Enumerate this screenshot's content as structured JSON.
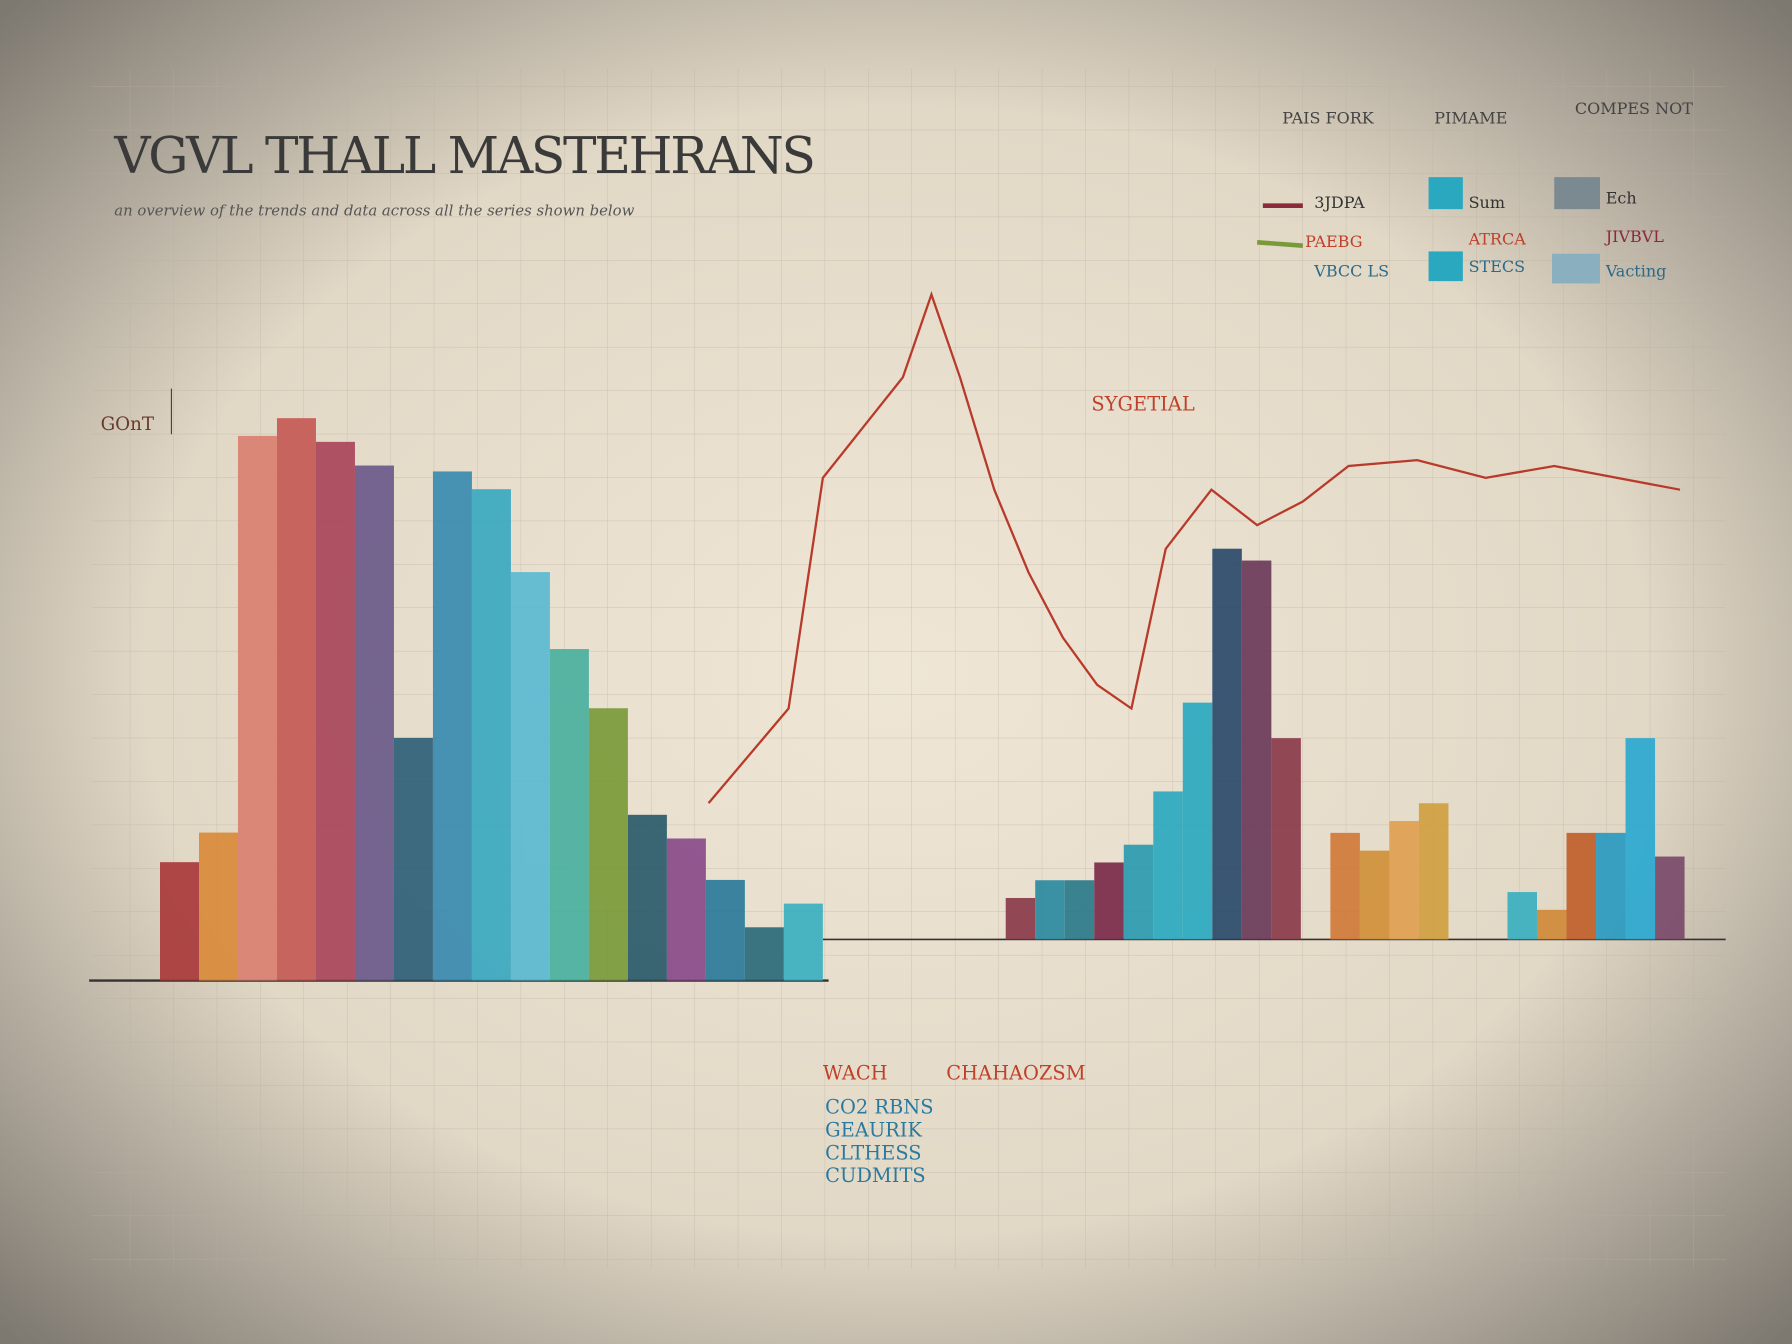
{
  "chart_data": [
    {
      "type": "bar",
      "title": "VGVL THALL MASTEHRANS",
      "subtitle": "an overview of the trends and data across all the series shown below",
      "ylabel": "GOnT",
      "categories": [
        null,
        null,
        null,
        null,
        null,
        null,
        null,
        null,
        null,
        null,
        null,
        null,
        null,
        null,
        null,
        null,
        null
      ],
      "values": [
        20,
        25,
        92,
        95,
        91,
        87,
        41,
        86,
        83,
        69,
        56,
        46,
        28,
        24,
        17,
        9,
        13
      ],
      "colors": [
        "#a83a3a",
        "#d98a3a",
        "#d98070",
        "#c45a55",
        "#a8455a",
        "#6a5a8a",
        "#2f5f78",
        "#3a8ab0",
        "#3aa8c0",
        "#5ab8d0",
        "#4ab0a0",
        "#7a9a3a",
        "#2a5a6a",
        "#8a4a8a",
        "#2a7a9a",
        "#2a6a7a",
        "#3ab0c0"
      ],
      "ylim": [
        0,
        100
      ],
      "annotations": [
        "SYGETIAL",
        "CHAHAOZSM",
        "WACH",
        "CO2 RBNS",
        "GEAURIK",
        "CLTHESS",
        "CUDMITS"
      ]
    },
    {
      "type": "bar",
      "categories": [
        null,
        null,
        null,
        null,
        null,
        null,
        null,
        null,
        null,
        null,
        null,
        null,
        null,
        null,
        null,
        null,
        null,
        null,
        null,
        null,
        null,
        null,
        null
      ],
      "values": [
        7,
        10,
        10,
        13,
        16,
        25,
        40,
        66,
        64,
        34,
        null,
        18,
        15,
        20,
        23,
        null,
        null,
        8,
        5,
        18,
        18,
        34,
        14
      ],
      "colors": [
        "#8a3a4a",
        "#2a8aa0",
        "#2a7a8a",
        "#7a2a4a",
        "#2a9ab0",
        "#2aa8c0",
        "#2aa8c0",
        "#2a4a6a",
        "#6a3a5a",
        "#8a3a4a",
        null,
        "#d07a3a",
        "#d0903a",
        "#e0a050",
        "#d0a040",
        null,
        null,
        "#3ab0c0",
        "#d08a3a",
        "#c0602a",
        "#2a9ac0",
        "#2aa8d0",
        "#7a4a6a"
      ],
      "ylim": [
        0,
        100
      ],
      "annotations": [
        "PAIS FORK",
        "PIMAME",
        "COMPES NOT",
        "3JDPA",
        "Sum",
        "Ech",
        "PAEBG",
        "ATRCA",
        "JIVBVL",
        "VBCC LS",
        "STECS",
        "Vacting"
      ]
    },
    {
      "type": "line",
      "x": [
        62,
        69,
        72,
        79,
        81.5,
        84,
        87,
        90,
        93,
        96,
        99,
        102,
        106,
        110,
        114,
        118,
        124,
        130,
        136,
        147
      ],
      "series": [
        {
          "color": "#b83a2a",
          "values": [
            30,
            46,
            85,
            102,
            116,
            102,
            83,
            69,
            58,
            50,
            46,
            73,
            83,
            77,
            81,
            87,
            88,
            85,
            87,
            83
          ]
        }
      ],
      "xlim": [
        62,
        148
      ],
      "ylim": [
        0,
        120
      ]
    }
  ]
}
